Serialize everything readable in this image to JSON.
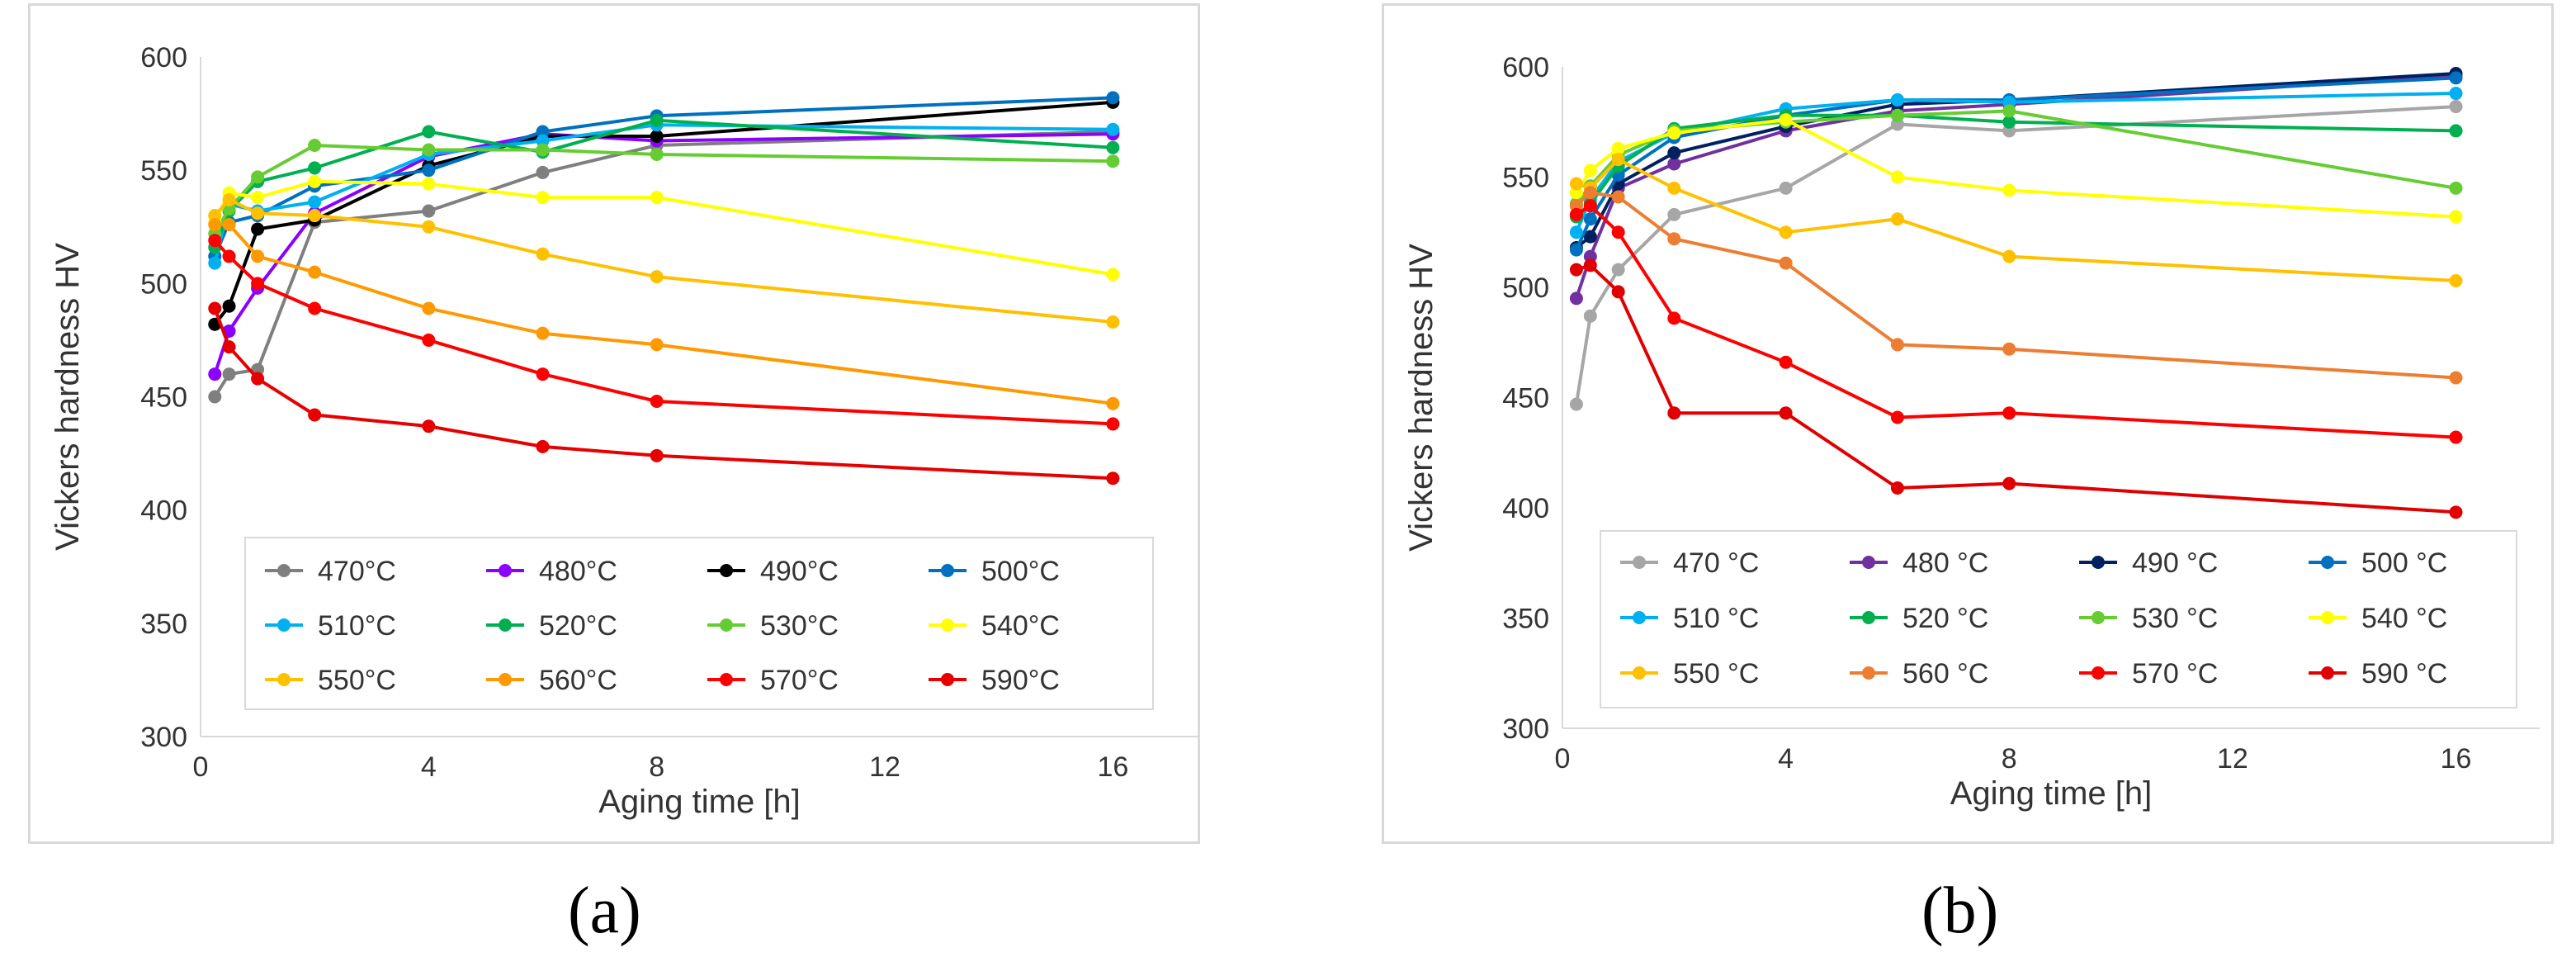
{
  "panels": [
    {
      "label": "(a)"
    },
    {
      "label": "(b)"
    }
  ],
  "chart_data": [
    {
      "type": "line",
      "xlabel": "Aging time [h]",
      "ylabel": "Vickers hardness HV",
      "xlim": [
        0,
        17.5
      ],
      "ylim": [
        300,
        600
      ],
      "xticks": [
        0,
        4,
        8,
        12,
        16
      ],
      "yticks": [
        300,
        350,
        400,
        450,
        500,
        550,
        600
      ],
      "grid": false,
      "legend_position": "bottom-inside",
      "series": [
        {
          "name": "470°C",
          "color": "#7f7f7f",
          "x": [
            0.25,
            0.5,
            1,
            2,
            4,
            6,
            8,
            16
          ],
          "y": [
            450,
            460,
            462,
            527,
            532,
            549,
            561,
            567
          ]
        },
        {
          "name": "480°C",
          "color": "#8b00ff",
          "x": [
            0.25,
            0.5,
            1,
            2,
            4,
            6,
            8,
            16
          ],
          "y": [
            460,
            479,
            498,
            531,
            556,
            566,
            563,
            566
          ]
        },
        {
          "name": "490°C",
          "color": "#000000",
          "x": [
            0.25,
            0.5,
            1,
            2,
            4,
            6,
            8,
            16
          ],
          "y": [
            482,
            490,
            524,
            528,
            552,
            565,
            565,
            580
          ]
        },
        {
          "name": "500°C",
          "color": "#0070c0",
          "x": [
            0.25,
            0.5,
            1,
            2,
            4,
            6,
            8,
            16
          ],
          "y": [
            512,
            527,
            530,
            543,
            550,
            567,
            574,
            582
          ]
        },
        {
          "name": "510°C",
          "color": "#00b0f0",
          "x": [
            0.25,
            0.5,
            1,
            2,
            4,
            6,
            8,
            16
          ],
          "y": [
            509,
            535,
            532,
            536,
            557,
            563,
            570,
            568
          ]
        },
        {
          "name": "520°C",
          "color": "#00b050",
          "x": [
            0.25,
            0.5,
            1,
            2,
            4,
            6,
            8,
            16
          ],
          "y": [
            516,
            532,
            545,
            551,
            567,
            558,
            572,
            560
          ]
        },
        {
          "name": "530°C",
          "color": "#66cc33",
          "x": [
            0.25,
            0.5,
            1,
            2,
            4,
            6,
            8,
            16
          ],
          "y": [
            522,
            533,
            547,
            561,
            559,
            559,
            557,
            554
          ]
        },
        {
          "name": "540°C",
          "color": "#ffff00",
          "x": [
            0.25,
            0.5,
            1,
            2,
            4,
            6,
            8,
            16
          ],
          "y": [
            527,
            540,
            538,
            545,
            544,
            538,
            538,
            504
          ]
        },
        {
          "name": "550°C",
          "color": "#ffc000",
          "x": [
            0.25,
            0.5,
            1,
            2,
            4,
            6,
            8,
            16
          ],
          "y": [
            530,
            537,
            531,
            530,
            525,
            513,
            503,
            483
          ]
        },
        {
          "name": "560°C",
          "color": "#ff9900",
          "x": [
            0.25,
            0.5,
            1,
            2,
            4,
            6,
            8,
            16
          ],
          "y": [
            526,
            526,
            512,
            505,
            489,
            478,
            473,
            447
          ]
        },
        {
          "name": "570°C",
          "color": "#ff0000",
          "x": [
            0.25,
            0.5,
            1,
            2,
            4,
            6,
            8,
            16
          ],
          "y": [
            519,
            512,
            500,
            489,
            475,
            460,
            448,
            438
          ]
        },
        {
          "name": "590°C",
          "color": "#e60000",
          "x": [
            0.25,
            0.5,
            1,
            2,
            4,
            6,
            8,
            16
          ],
          "y": [
            489,
            472,
            458,
            442,
            437,
            428,
            424,
            414
          ]
        }
      ]
    },
    {
      "type": "line",
      "xlabel": "Aging time [h]",
      "ylabel": "Vickers hardness HV",
      "xlim": [
        0,
        17.5
      ],
      "ylim": [
        300,
        600
      ],
      "xticks": [
        0,
        4,
        8,
        12,
        16
      ],
      "yticks": [
        300,
        350,
        400,
        450,
        500,
        550,
        600
      ],
      "grid": false,
      "legend_position": "bottom-inside",
      "series": [
        {
          "name": "470 °C",
          "color": "#a6a6a6",
          "x": [
            0.25,
            0.5,
            1,
            2,
            4,
            6,
            8,
            16
          ],
          "y": [
            447,
            487,
            508,
            533,
            545,
            574,
            571,
            582
          ]
        },
        {
          "name": "480 °C",
          "color": "#7030a0",
          "x": [
            0.25,
            0.5,
            1,
            2,
            4,
            6,
            8,
            16
          ],
          "y": [
            495,
            514,
            545,
            556,
            571,
            580,
            583,
            596
          ]
        },
        {
          "name": "490 °C",
          "color": "#002060",
          "x": [
            0.25,
            0.5,
            1,
            2,
            4,
            6,
            8,
            16
          ],
          "y": [
            518,
            523,
            547,
            561,
            573,
            583,
            585,
            597
          ]
        },
        {
          "name": "500 °C",
          "color": "#0070c0",
          "x": [
            0.25,
            0.5,
            1,
            2,
            4,
            6,
            8,
            16
          ],
          "y": [
            517,
            531,
            551,
            568,
            578,
            585,
            585,
            595
          ]
        },
        {
          "name": "510 °C",
          "color": "#00b0f0",
          "x": [
            0.25,
            0.5,
            1,
            2,
            4,
            6,
            8,
            16
          ],
          "y": [
            525,
            540,
            557,
            570,
            581,
            585,
            584,
            588
          ]
        },
        {
          "name": "520 °C",
          "color": "#00b050",
          "x": [
            0.25,
            0.5,
            1,
            2,
            4,
            6,
            8,
            16
          ],
          "y": [
            532,
            538,
            555,
            572,
            578,
            578,
            575,
            571
          ]
        },
        {
          "name": "530 °C",
          "color": "#66cc33",
          "x": [
            0.25,
            0.5,
            1,
            2,
            4,
            6,
            8,
            16
          ],
          "y": [
            538,
            546,
            560,
            571,
            575,
            578,
            580,
            545
          ]
        },
        {
          "name": "540 °C",
          "color": "#ffff00",
          "x": [
            0.25,
            0.5,
            1,
            2,
            4,
            6,
            8,
            16
          ],
          "y": [
            543,
            553,
            563,
            570,
            576,
            550,
            544,
            532
          ]
        },
        {
          "name": "550 °C",
          "color": "#ffc000",
          "x": [
            0.25,
            0.5,
            1,
            2,
            4,
            6,
            8,
            16
          ],
          "y": [
            547,
            545,
            558,
            545,
            525,
            531,
            514,
            503
          ]
        },
        {
          "name": "560 °C",
          "color": "#ed7d31",
          "x": [
            0.25,
            0.5,
            1,
            2,
            4,
            6,
            8,
            16
          ],
          "y": [
            537,
            543,
            541,
            522,
            511,
            474,
            472,
            459
          ]
        },
        {
          "name": "570 °C",
          "color": "#ff0000",
          "x": [
            0.25,
            0.5,
            1,
            2,
            4,
            6,
            8,
            16
          ],
          "y": [
            533,
            537,
            525,
            486,
            466,
            441,
            443,
            432
          ]
        },
        {
          "name": "590 °C",
          "color": "#e00000",
          "x": [
            0.25,
            0.5,
            1,
            2,
            4,
            6,
            8,
            16
          ],
          "y": [
            508,
            510,
            498,
            443,
            443,
            409,
            411,
            398
          ]
        }
      ]
    }
  ]
}
